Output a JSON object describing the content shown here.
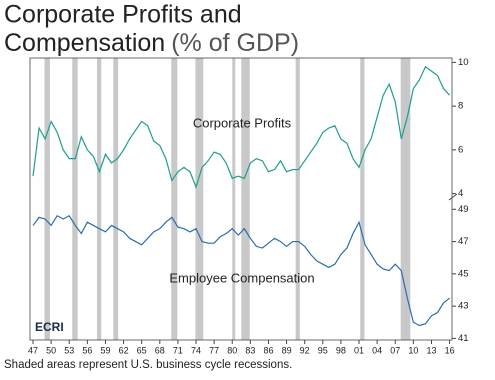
{
  "chart_data": [
    {
      "type": "line",
      "title": "Corporate Profits and",
      "subtitle": "Compensation",
      "title_suffix": "(% of GDP)",
      "x": [
        1947,
        1948,
        1949,
        1950,
        1951,
        1952,
        1953,
        1954,
        1955,
        1956,
        1957,
        1958,
        1959,
        1960,
        1961,
        1962,
        1963,
        1964,
        1965,
        1966,
        1967,
        1968,
        1969,
        1970,
        1971,
        1972,
        1973,
        1974,
        1975,
        1976,
        1977,
        1978,
        1979,
        1980,
        1981,
        1982,
        1983,
        1984,
        1985,
        1986,
        1987,
        1988,
        1989,
        1990,
        1991,
        1992,
        1993,
        1994,
        1995,
        1996,
        1997,
        1998,
        1999,
        2000,
        2001,
        2002,
        2003,
        2004,
        2005,
        2006,
        2007,
        2008,
        2009,
        2010,
        2011,
        2012,
        2013,
        2014,
        2015,
        2016
      ],
      "xlim": [
        1946.5,
        2016.4
      ],
      "ylim": [
        3.8,
        10.2
      ],
      "yticks": [
        4,
        6,
        8,
        10
      ],
      "series": [
        {
          "name": "Corporate Profits",
          "color": "#1f9e8f",
          "values": [
            4.8,
            7.0,
            6.5,
            7.3,
            6.8,
            6.0,
            5.6,
            5.6,
            6.6,
            6.0,
            5.7,
            5.0,
            5.8,
            5.4,
            5.6,
            6.0,
            6.5,
            6.9,
            7.3,
            7.1,
            6.4,
            6.2,
            5.6,
            4.6,
            5.0,
            5.2,
            5.0,
            4.3,
            5.2,
            5.5,
            5.9,
            5.8,
            5.4,
            4.7,
            4.8,
            4.7,
            5.4,
            5.6,
            5.5,
            5.0,
            5.1,
            5.5,
            5.0,
            5.1,
            5.1,
            5.5,
            5.9,
            6.3,
            6.8,
            7.0,
            7.1,
            6.5,
            6.3,
            5.6,
            5.2,
            6.0,
            6.5,
            7.5,
            8.5,
            9.0,
            8.2,
            6.5,
            7.5,
            8.8,
            9.2,
            9.8,
            9.6,
            9.4,
            8.8,
            8.5
          ]
        }
      ],
      "recessions": [
        [
          1948.9,
          1949.8
        ],
        [
          1953.5,
          1954.4
        ],
        [
          1957.6,
          1958.3
        ],
        [
          1960.3,
          1961.1
        ],
        [
          1969.9,
          1970.9
        ],
        [
          1973.9,
          1975.2
        ],
        [
          1980.0,
          1980.5
        ],
        [
          1981.5,
          1982.9
        ],
        [
          1990.5,
          1991.2
        ],
        [
          2001.2,
          2001.9
        ],
        [
          2007.9,
          2009.5
        ]
      ]
    },
    {
      "type": "line",
      "x": [
        1947,
        1948,
        1949,
        1950,
        1951,
        1952,
        1953,
        1954,
        1955,
        1956,
        1957,
        1958,
        1959,
        1960,
        1961,
        1962,
        1963,
        1964,
        1965,
        1966,
        1967,
        1968,
        1969,
        1970,
        1971,
        1972,
        1973,
        1974,
        1975,
        1976,
        1977,
        1978,
        1979,
        1980,
        1981,
        1982,
        1983,
        1984,
        1985,
        1986,
        1987,
        1988,
        1989,
        1990,
        1991,
        1992,
        1993,
        1994,
        1995,
        1996,
        1997,
        1998,
        1999,
        2000,
        2001,
        2002,
        2003,
        2004,
        2005,
        2006,
        2007,
        2008,
        2009,
        2010,
        2011,
        2012,
        2013,
        2014,
        2015,
        2016
      ],
      "xlim": [
        1946.5,
        2016.4
      ],
      "xticks": [
        {
          "value": 1947,
          "label": "47"
        },
        {
          "value": 1950,
          "label": "50"
        },
        {
          "value": 1953,
          "label": "53"
        },
        {
          "value": 1956,
          "label": "56"
        },
        {
          "value": 1959,
          "label": "59"
        },
        {
          "value": 1962,
          "label": "62"
        },
        {
          "value": 1965,
          "label": "65"
        },
        {
          "value": 1968,
          "label": "68"
        },
        {
          "value": 1971,
          "label": "71"
        },
        {
          "value": 1974,
          "label": "74"
        },
        {
          "value": 1977,
          "label": "77"
        },
        {
          "value": 1980,
          "label": "80"
        },
        {
          "value": 1983,
          "label": "83"
        },
        {
          "value": 1986,
          "label": "86"
        },
        {
          "value": 1989,
          "label": "89"
        },
        {
          "value": 1992,
          "label": "92"
        },
        {
          "value": 1995,
          "label": "95"
        },
        {
          "value": 1998,
          "label": "98"
        },
        {
          "value": 2001,
          "label": "01"
        },
        {
          "value": 2004,
          "label": "04"
        },
        {
          "value": 2007,
          "label": "07"
        },
        {
          "value": 2010,
          "label": "10"
        },
        {
          "value": 2013,
          "label": "13"
        },
        {
          "value": 2016,
          "label": "16"
        }
      ],
      "ylim": [
        40.9,
        49.7
      ],
      "yticks": [
        41,
        43,
        45,
        47,
        49
      ],
      "series": [
        {
          "name": "Employee Compensation",
          "color": "#2a6db0",
          "values": [
            48.0,
            48.5,
            48.4,
            48.0,
            48.6,
            48.4,
            48.6,
            48.0,
            47.5,
            48.2,
            48.0,
            47.8,
            47.6,
            48.0,
            47.8,
            47.6,
            47.2,
            47.0,
            46.8,
            47.2,
            47.6,
            47.8,
            48.2,
            48.5,
            47.9,
            47.8,
            47.6,
            47.8,
            47.0,
            46.9,
            46.9,
            47.3,
            47.5,
            47.8,
            47.4,
            47.8,
            47.2,
            46.7,
            46.6,
            46.9,
            47.2,
            47.0,
            46.7,
            47.0,
            47.0,
            46.7,
            46.2,
            45.8,
            45.6,
            45.4,
            45.6,
            46.2,
            46.6,
            47.5,
            48.2,
            46.8,
            46.2,
            45.6,
            45.3,
            45.2,
            45.6,
            45.2,
            43.5,
            42.0,
            41.8,
            41.9,
            42.4,
            42.6,
            43.2,
            43.5
          ]
        }
      ]
    }
  ],
  "source_logo": "ECRI",
  "footnote": "Shaded areas represent U.S. business cycle recessions."
}
